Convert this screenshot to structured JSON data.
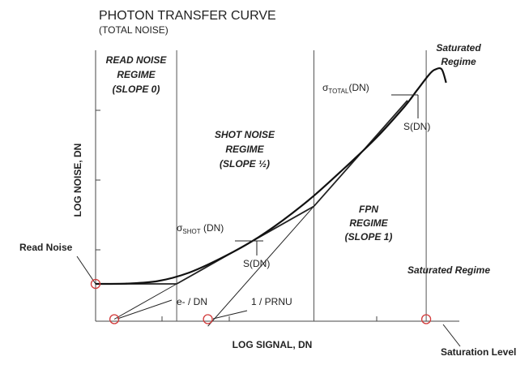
{
  "chart_data": {
    "type": "line",
    "title": "PHOTON TRANSFER CURVE",
    "subtitle": "(TOTAL NOISE)",
    "xlabel": "LOG SIGNAL, DN",
    "ylabel": "LOG NOISE, DN",
    "grid": false,
    "scale": "log-log",
    "regimes": [
      {
        "lines": [
          "READ NOISE",
          "REGIME",
          "(SLOPE 0)"
        ]
      },
      {
        "lines": [
          "SHOT NOISE",
          "REGIME",
          "(SLOPE ½)"
        ]
      },
      {
        "lines": [
          "FPN",
          "REGIME",
          "(SLOPE 1)"
        ]
      },
      {
        "lines": [
          "Saturated",
          "Regime"
        ]
      },
      {
        "lines": [
          "Saturated Regime"
        ]
      }
    ],
    "curve_labels": {
      "total_main": "σ",
      "total_sub": "TOTAL",
      "total_suffix": "(DN)",
      "shot_main": "σ",
      "shot_sub": "SHOT",
      "shot_suffix": " (DN)",
      "s_upper": "S(DN)",
      "s_lower": "S(DN)",
      "e_per_dn": "e- / DN",
      "prnu": "1 / PRNU"
    },
    "callouts": {
      "read_noise": "Read Noise",
      "saturation_level": "Saturation Level"
    },
    "series": [
      {
        "role": "total-noise",
        "x": [
          0.0,
          0.5,
          1.0,
          1.5,
          2.0,
          2.5,
          3.0,
          3.5,
          4.0,
          4.5,
          4.95,
          5.15,
          5.35,
          5.45,
          5.55,
          5.62
        ],
        "y": [
          0.0,
          0.005,
          0.04,
          0.16,
          0.36,
          0.6,
          0.9,
          1.25,
          1.65,
          2.07,
          2.51,
          2.74,
          2.97,
          3.04,
          3.04,
          2.85
        ]
      },
      {
        "role": "read-noise-asymptote",
        "x": [
          0.0,
          1.3
        ],
        "y": [
          0.0,
          0.0
        ]
      },
      {
        "role": "shot-noise-asymptote",
        "x": [
          1.3,
          3.5
        ],
        "y": [
          0.0,
          1.1
        ]
      },
      {
        "role": "fpn-asymptote",
        "x": [
          3.5,
          5.0
        ],
        "y": [
          1.1,
          2.6
        ]
      },
      {
        "role": "e-per-dn-extension",
        "x": [
          0.3,
          1.3
        ],
        "y": [
          -0.5,
          0.0
        ]
      },
      {
        "role": "prnu-extension",
        "x": [
          1.8,
          3.5
        ],
        "y": [
          -0.6,
          1.1
        ]
      }
    ],
    "vertical_markers": [
      {
        "x": 1.3
      },
      {
        "x": 3.5
      },
      {
        "x": 5.3
      }
    ],
    "markers": [
      {
        "name": "read-noise",
        "x": 0.0,
        "y": 0.0
      },
      {
        "name": "e-per-dn",
        "x": 0.3,
        "y": -0.5
      },
      {
        "name": "prnu",
        "x": 1.8,
        "y": -0.5
      },
      {
        "name": "saturation-level",
        "x": 5.3,
        "y": -0.5
      }
    ]
  }
}
